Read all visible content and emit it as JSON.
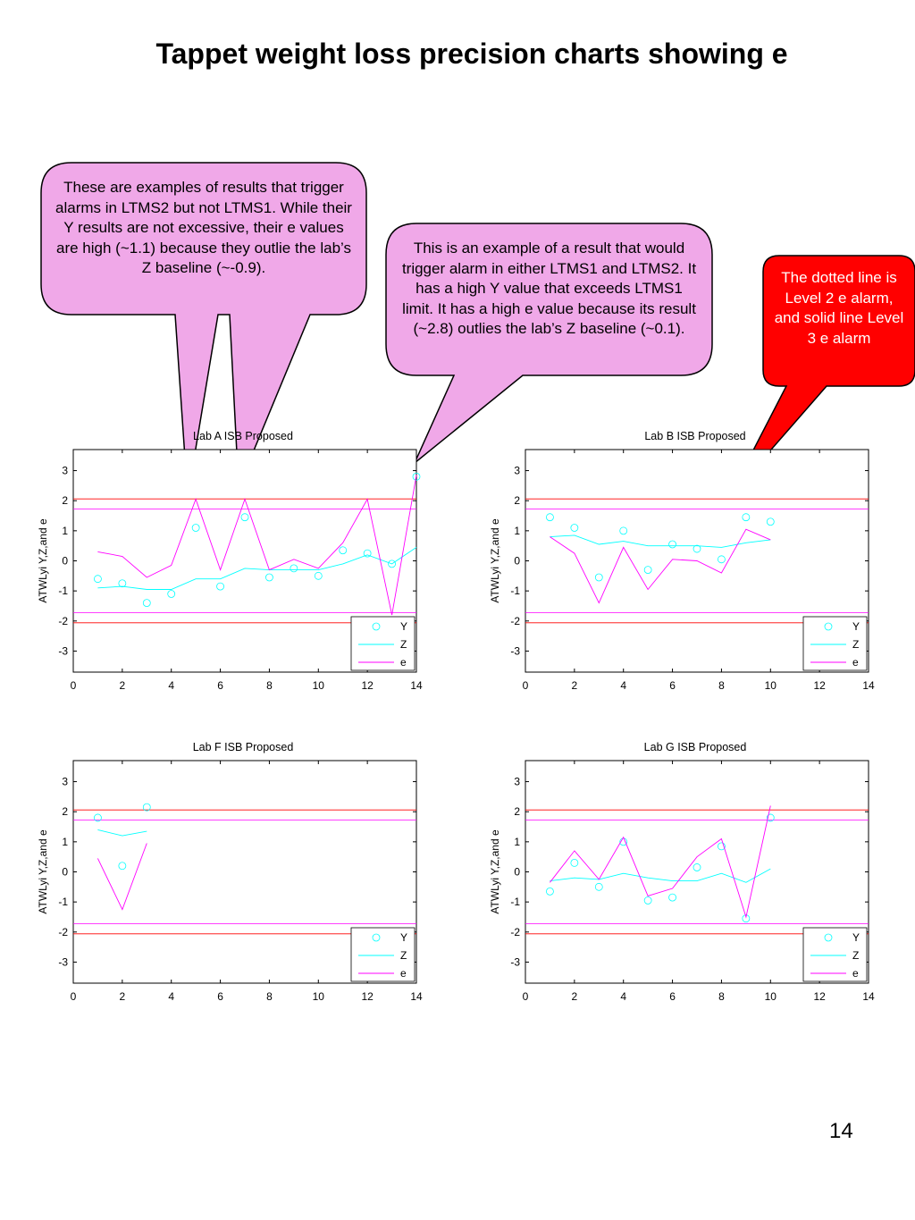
{
  "slide": {
    "title": "Tappet weight loss precision charts showing e",
    "page_number": "14"
  },
  "callouts": [
    {
      "text": "These are examples of results that trigger alarms in LTMS2 but not LTMS1.  While their Y results are not excessive, their e values are high (~1.1) because they outlie the lab’s Z baseline (~-0.9).",
      "fill": "#F0A8E8",
      "text_color": "#000000"
    },
    {
      "text": "This is an example of a result that would trigger alarm in either LTMS1 and LTMS2.  It has a high Y value that exceeds LTMS1 limit.  It has a high e value because its result (~2.8) outlies the lab’s Z baseline (~0.1).",
      "fill": "#F0A8E8",
      "text_color": "#000000"
    },
    {
      "text": "The dotted line is Level 2 e alarm, and solid line Level 3 e alarm",
      "fill": "#FF0000",
      "text_color": "#FFFFFF"
    }
  ],
  "colors": {
    "Y": "#00FFFF",
    "Z": "#00FFFF",
    "e": "#FF00FF",
    "level2": "#FF00FF",
    "level3": "#FF0000"
  },
  "chart_data": [
    {
      "type": "line",
      "title": "Lab A ISB Proposed",
      "ylabel": "ATWLyi Y,Z,and e",
      "xlim": [
        0,
        14
      ],
      "ylim": [
        -3.7,
        3.7
      ],
      "xticks": [
        0,
        2,
        4,
        6,
        8,
        10,
        12,
        14
      ],
      "yticks": [
        3,
        2,
        1,
        0,
        -1,
        -2,
        -3
      ],
      "level2_limits": [
        1.72,
        -1.72
      ],
      "level3_limits": [
        2.06,
        -2.06
      ],
      "legend": [
        "Y",
        "Z",
        "e"
      ],
      "legend_position": "bottom-right",
      "series": [
        {
          "name": "Y",
          "marker": "circle",
          "x": [
            1,
            2,
            3,
            4,
            5,
            6,
            7,
            8,
            9,
            10,
            11,
            12,
            13,
            14
          ],
          "values": [
            -0.6,
            -0.75,
            -1.4,
            -1.1,
            1.1,
            -0.85,
            1.45,
            -0.55,
            -0.25,
            -0.5,
            0.35,
            0.25,
            -0.1,
            2.8
          ]
        },
        {
          "name": "Z",
          "x": [
            1,
            2,
            3,
            4,
            5,
            6,
            7,
            8,
            9,
            10,
            11,
            12,
            13,
            14
          ],
          "values": [
            -0.9,
            -0.85,
            -0.95,
            -0.95,
            -0.6,
            -0.6,
            -0.25,
            -0.3,
            -0.3,
            -0.3,
            -0.1,
            0.2,
            -0.1,
            0.45
          ]
        },
        {
          "name": "e",
          "x": [
            1,
            2,
            3,
            4,
            5,
            6,
            7,
            8,
            9,
            10,
            11,
            12,
            13,
            14
          ],
          "values": [
            0.3,
            0.15,
            -0.55,
            -0.15,
            2.05,
            -0.3,
            2.05,
            -0.3,
            0.05,
            -0.25,
            0.6,
            2.05,
            -1.8,
            2.85
          ]
        }
      ]
    },
    {
      "type": "line",
      "title": "Lab B ISB Proposed",
      "ylabel": "ATWLyi Y,Z,and e",
      "xlim": [
        0,
        14
      ],
      "ylim": [
        -3.7,
        3.7
      ],
      "xticks": [
        0,
        2,
        4,
        6,
        8,
        10,
        12,
        14
      ],
      "yticks": [
        3,
        2,
        1,
        0,
        -1,
        -2,
        -3
      ],
      "level2_limits": [
        1.72,
        -1.72
      ],
      "level3_limits": [
        2.06,
        -2.06
      ],
      "legend": [
        "Y",
        "Z",
        "e"
      ],
      "legend_position": "bottom-right",
      "series": [
        {
          "name": "Y",
          "marker": "circle",
          "x": [
            1,
            2,
            3,
            4,
            5,
            6,
            7,
            8,
            9,
            10
          ],
          "values": [
            1.45,
            1.1,
            -0.55,
            1.0,
            -0.3,
            0.55,
            0.4,
            0.05,
            1.45,
            1.3
          ]
        },
        {
          "name": "Z",
          "x": [
            1,
            2,
            3,
            4,
            5,
            6,
            7,
            8,
            9,
            10
          ],
          "values": [
            0.8,
            0.85,
            0.55,
            0.65,
            0.5,
            0.5,
            0.5,
            0.45,
            0.6,
            0.7
          ]
        },
        {
          "name": "e",
          "x": [
            1,
            2,
            3,
            4,
            5,
            6,
            7,
            8,
            9,
            10
          ],
          "values": [
            0.8,
            0.25,
            -1.4,
            0.45,
            -0.95,
            0.05,
            0.0,
            -0.4,
            1.05,
            0.7
          ]
        }
      ]
    },
    {
      "type": "line",
      "title": "Lab F ISB Proposed",
      "ylabel": "ATWLyi Y,Z,and e",
      "xlim": [
        0,
        14
      ],
      "ylim": [
        -3.7,
        3.7
      ],
      "xticks": [
        0,
        2,
        4,
        6,
        8,
        10,
        12,
        14
      ],
      "yticks": [
        3,
        2,
        1,
        0,
        -1,
        -2,
        -3
      ],
      "level2_limits": [
        1.72,
        -1.72
      ],
      "level3_limits": [
        2.06,
        -2.06
      ],
      "legend": [
        "Y",
        "Z",
        "e"
      ],
      "legend_position": "bottom-right",
      "series": [
        {
          "name": "Y",
          "marker": "circle",
          "x": [
            1,
            2,
            3
          ],
          "values": [
            1.8,
            0.2,
            2.15
          ]
        },
        {
          "name": "Z",
          "x": [
            1,
            2,
            3
          ],
          "values": [
            1.4,
            1.2,
            1.35
          ]
        },
        {
          "name": "e",
          "x": [
            1,
            2,
            3
          ],
          "values": [
            0.45,
            -1.25,
            0.95
          ]
        }
      ]
    },
    {
      "type": "line",
      "title": "Lab G ISB Proposed",
      "ylabel": "ATWLyi Y,Z,and e",
      "xlim": [
        0,
        14
      ],
      "ylim": [
        -3.7,
        3.7
      ],
      "xticks": [
        0,
        2,
        4,
        6,
        8,
        10,
        12,
        14
      ],
      "yticks": [
        3,
        2,
        1,
        0,
        -1,
        -2,
        -3
      ],
      "level2_limits": [
        1.72,
        -1.72
      ],
      "level3_limits": [
        2.06,
        -2.06
      ],
      "legend": [
        "Y",
        "Z",
        "e"
      ],
      "legend_position": "bottom-right",
      "series": [
        {
          "name": "Y",
          "marker": "circle",
          "x": [
            1,
            2,
            3,
            4,
            5,
            6,
            7,
            8,
            9,
            10
          ],
          "values": [
            -0.65,
            0.3,
            -0.5,
            1.0,
            -0.95,
            -0.85,
            0.15,
            0.85,
            -1.55,
            1.8
          ]
        },
        {
          "name": "Z",
          "x": [
            1,
            2,
            3,
            4,
            5,
            6,
            7,
            8,
            9,
            10
          ],
          "values": [
            -0.3,
            -0.2,
            -0.25,
            -0.05,
            -0.2,
            -0.3,
            -0.3,
            -0.05,
            -0.35,
            0.1
          ]
        },
        {
          "name": "e",
          "x": [
            1,
            2,
            3,
            4,
            5,
            6,
            7,
            8,
            9,
            10
          ],
          "values": [
            -0.35,
            0.7,
            -0.25,
            1.15,
            -0.8,
            -0.55,
            0.5,
            1.1,
            -1.5,
            2.2
          ]
        }
      ]
    }
  ]
}
